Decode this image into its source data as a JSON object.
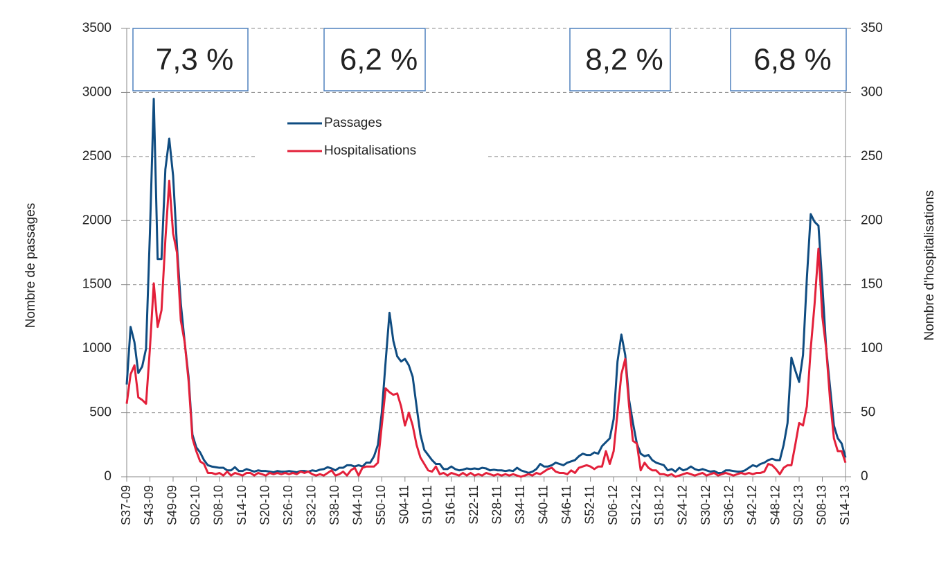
{
  "chart_data": {
    "type": "line",
    "y_label": "Nombre de passages",
    "y2_label": "Nombre d'hospitalisations",
    "annotations": [
      "7,3 %",
      "6,2 %",
      "8,2 %",
      "6,8 %"
    ],
    "categories": [
      "S37-09",
      null,
      null,
      null,
      null,
      null,
      "S43-09",
      null,
      null,
      null,
      null,
      null,
      "S49-09",
      null,
      null,
      null,
      null,
      null,
      "S02-10",
      null,
      null,
      null,
      null,
      null,
      "S08-10",
      null,
      null,
      null,
      null,
      null,
      "S14-10",
      null,
      null,
      null,
      null,
      null,
      "S20-10",
      null,
      null,
      null,
      null,
      null,
      "S26-10",
      null,
      null,
      null,
      null,
      null,
      "S32-10",
      null,
      null,
      null,
      null,
      null,
      "S38-10",
      null,
      null,
      null,
      null,
      null,
      "S44-10",
      null,
      null,
      null,
      null,
      null,
      "S50-10",
      null,
      null,
      null,
      null,
      null,
      "S04-11",
      null,
      null,
      null,
      null,
      null,
      "S10-11",
      null,
      null,
      null,
      null,
      null,
      "S16-11",
      null,
      null,
      null,
      null,
      null,
      "S22-11",
      null,
      null,
      null,
      null,
      null,
      "S28-11",
      null,
      null,
      null,
      null,
      null,
      "S34-11",
      null,
      null,
      null,
      null,
      null,
      "S40-11",
      null,
      null,
      null,
      null,
      null,
      "S46-11",
      null,
      null,
      null,
      null,
      null,
      "S52-11",
      null,
      null,
      null,
      null,
      null,
      "S06-12",
      null,
      null,
      null,
      null,
      null,
      "S12-12",
      null,
      null,
      null,
      null,
      null,
      "S18-12",
      null,
      null,
      null,
      null,
      null,
      "S24-12",
      null,
      null,
      null,
      null,
      null,
      "S30-12",
      null,
      null,
      null,
      null,
      null,
      "S36-12",
      null,
      null,
      null,
      null,
      null,
      "S42-12",
      null,
      null,
      null,
      null,
      null,
      "S48-12",
      null,
      null,
      null,
      null,
      null,
      "S02-13",
      null,
      null,
      null,
      null,
      null,
      "S08-13",
      null,
      null,
      null,
      null,
      null,
      "S14-13"
    ],
    "series": [
      {
        "name": "Passages",
        "color": "#0f4c81",
        "values": [
          720,
          1170,
          1050,
          810,
          860,
          1000,
          1900,
          2950,
          1700,
          1700,
          2400,
          2640,
          2350,
          1800,
          1350,
          1050,
          780,
          330,
          230,
          190,
          130,
          90,
          80,
          75,
          70,
          70,
          50,
          50,
          75,
          45,
          45,
          60,
          50,
          40,
          50,
          45,
          45,
          40,
          35,
          45,
          40,
          40,
          45,
          40,
          35,
          45,
          45,
          40,
          50,
          45,
          55,
          60,
          75,
          65,
          50,
          70,
          70,
          90,
          90,
          80,
          90,
          80,
          110,
          110,
          160,
          250,
          500,
          900,
          1280,
          1060,
          940,
          900,
          920,
          870,
          780,
          550,
          330,
          210,
          170,
          130,
          100,
          100,
          60,
          60,
          80,
          60,
          50,
          55,
          65,
          60,
          65,
          60,
          70,
          65,
          50,
          55,
          50,
          50,
          45,
          50,
          45,
          70,
          50,
          40,
          30,
          40,
          60,
          100,
          80,
          80,
          90,
          110,
          100,
          90,
          110,
          120,
          130,
          160,
          180,
          170,
          170,
          190,
          180,
          240,
          270,
          300,
          450,
          900,
          1110,
          950,
          600,
          420,
          260,
          180,
          160,
          170,
          130,
          110,
          100,
          90,
          50,
          60,
          40,
          70,
          50,
          60,
          80,
          60,
          50,
          60,
          50,
          40,
          45,
          30,
          30,
          50,
          50,
          45,
          40,
          40,
          50,
          70,
          90,
          80,
          100,
          110,
          130,
          140,
          130,
          130,
          250,
          420,
          930,
          830,
          740,
          950,
          1550,
          2050,
          1990,
          1960,
          1500,
          1000,
          700,
          400,
          300,
          260,
          150
        ]
      },
      {
        "name": "Hospitalisations",
        "color": "#e3203a",
        "axis": "y2",
        "values": [
          57,
          80,
          87,
          62,
          60,
          57,
          100,
          151,
          117,
          130,
          185,
          231,
          190,
          175,
          122,
          105,
          75,
          30,
          20,
          12,
          10,
          3,
          3,
          2,
          3,
          1,
          4,
          1,
          3,
          2,
          1,
          3,
          3,
          1,
          3,
          2,
          1,
          3,
          2,
          3,
          2,
          3,
          2,
          3,
          2,
          4,
          3,
          4,
          2,
          1,
          2,
          1,
          3,
          5,
          1,
          2,
          4,
          1,
          5,
          7,
          1,
          7,
          8,
          8,
          8,
          11,
          40,
          69,
          66,
          64,
          65,
          55,
          40,
          50,
          40,
          25,
          15,
          10,
          5,
          4,
          8,
          2,
          3,
          1,
          3,
          2,
          1,
          3,
          1,
          3,
          1,
          2,
          1,
          3,
          2,
          1,
          2,
          1,
          2,
          1,
          2,
          1,
          0,
          1,
          2,
          1,
          3,
          2,
          4,
          6,
          7,
          4,
          3,
          3,
          2,
          5,
          3,
          7,
          8,
          9,
          8,
          6,
          8,
          8,
          20,
          10,
          20,
          50,
          80,
          92,
          55,
          28,
          26,
          5,
          11,
          7,
          5,
          5,
          2,
          2,
          1,
          2,
          0,
          1,
          2,
          3,
          2,
          1,
          2,
          3,
          1,
          2,
          3,
          1,
          2,
          3,
          2,
          1,
          2,
          3,
          2,
          3,
          2,
          3,
          3,
          4,
          10,
          9,
          6,
          2,
          7,
          9,
          9,
          25,
          42,
          40,
          55,
          100,
          135,
          178,
          125,
          100,
          60,
          30,
          20,
          20,
          11
        ]
      }
    ],
    "ylim": [
      0,
      3500
    ],
    "yticks": [
      0,
      500,
      1000,
      1500,
      2000,
      2500,
      3000,
      3500
    ],
    "y2lim": [
      0,
      350
    ],
    "y2ticks": [
      0,
      50,
      100,
      150,
      200,
      250,
      300,
      350
    ],
    "grid": true
  }
}
